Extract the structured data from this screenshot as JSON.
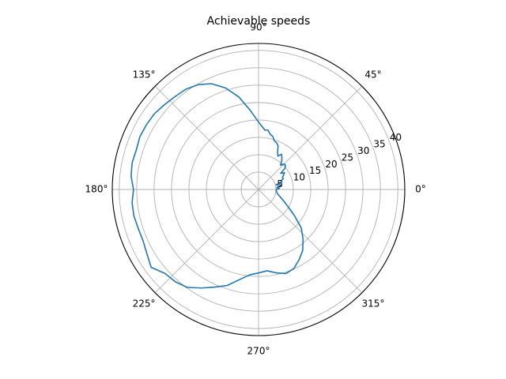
{
  "chart_data": {
    "type": "line",
    "projection": "polar",
    "title": "Achievable speeds",
    "xlabel": "",
    "ylabel": "",
    "theta_tick_labels": [
      "0°",
      "45°",
      "90°",
      "135°",
      "180°",
      "225°",
      "270°",
      "315°"
    ],
    "theta_ticks_deg": [
      0,
      45,
      90,
      135,
      180,
      225,
      270,
      315
    ],
    "r_tick_labels": [
      "5",
      "10",
      "15",
      "20",
      "25",
      "30",
      "35",
      "40"
    ],
    "r_ticks": [
      5,
      10,
      15,
      20,
      25,
      30,
      35,
      40
    ],
    "rlim": [
      0,
      42
    ],
    "r_label_position_deg": 22.5,
    "grid": true,
    "colors": {
      "series": "#1f77b4",
      "grid": "#b0b0b0",
      "frame": "#000000"
    },
    "series": [
      {
        "theta_deg": [
          0,
          3,
          6,
          9,
          12,
          15,
          18,
          21,
          24,
          27,
          30,
          33,
          36,
          39,
          42,
          45,
          48,
          51,
          54,
          57,
          60,
          63,
          66,
          69,
          72,
          75,
          78,
          81,
          84,
          90,
          96,
          102,
          108,
          114,
          120,
          126,
          132,
          138,
          144,
          150,
          156,
          162,
          168,
          174,
          180,
          186,
          192,
          198,
          204,
          210,
          216,
          222,
          228,
          234,
          240,
          246,
          252,
          258,
          264,
          270,
          276,
          282,
          288,
          294,
          300,
          306,
          312,
          318,
          324,
          330,
          336,
          342,
          348,
          354,
          360
        ],
        "r": [
          5.0,
          6.0,
          5.3,
          6.5,
          6.4,
          5.2,
          7.1,
          6.9,
          7.8,
          7.7,
          8.3,
          8.9,
          7.9,
          9.8,
          10.4,
          10.4,
          9.4,
          10.6,
          11.4,
          12.1,
          11.1,
          12.1,
          13.8,
          14.4,
          14.7,
          15.8,
          16.2,
          17.3,
          17.2,
          19.4,
          22.9,
          27.2,
          30.7,
          33.3,
          34.8,
          35.6,
          35.9,
          36.4,
          37.0,
          37.2,
          37.3,
          36.9,
          37.1,
          36.8,
          35.9,
          36.5,
          36.6,
          36.3,
          36.3,
          37.0,
          38.1,
          36.1,
          35.7,
          34.8,
          32.7,
          30.7,
          29.0,
          26.5,
          24.7,
          24.0,
          23.5,
          24.5,
          25.4,
          24.9,
          23.3,
          21.6,
          19.1,
          16.5,
          12.7,
          9.7,
          7.8,
          6.4,
          5.5,
          5.2,
          5.0
        ]
      }
    ]
  }
}
